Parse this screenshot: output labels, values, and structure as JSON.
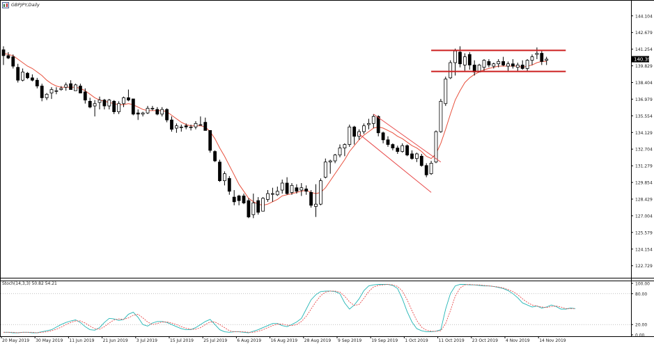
{
  "header": {
    "symbol_timeframe": "GBPJPY,Daily"
  },
  "chart_data": [
    {
      "type": "candlestick",
      "title": "GBPJPY,Daily",
      "y_ticks": [
        "144.104",
        "142.679",
        "141.254",
        "139.829",
        "138.404",
        "136.979",
        "135.554",
        "134.129",
        "132.704",
        "131.279",
        "129.854",
        "128.429",
        "127.004",
        "125.579",
        "124.154",
        "122.729"
      ],
      "x_ticks": [
        "20 May 2019",
        "30 May 2019",
        "11 Jun 2019",
        "21 Jun 2019",
        "3 Jul 2019",
        "15 Jul 2019",
        "25 Jul 2019",
        "6 Aug 2019",
        "16 Aug 2019",
        "28 Aug 2019",
        "9 Sep 2019",
        "19 Sep 2019",
        "1 Oct 2019",
        "11 Oct 2019",
        "23 Oct 2019",
        "4 Nov 2019",
        "14 Nov 2019"
      ],
      "ylim": [
        121.7,
        145.4
      ],
      "current_price": "140.397",
      "candles": [
        [
          141.2,
          141.5,
          139.9,
          140.7
        ],
        [
          140.7,
          141.0,
          140.4,
          140.5
        ],
        [
          140.6,
          140.8,
          139.6,
          139.8
        ],
        [
          139.7,
          140.0,
          138.4,
          138.6
        ],
        [
          138.6,
          139.6,
          138.5,
          139.3
        ],
        [
          139.2,
          139.3,
          138.7,
          138.8
        ],
        [
          138.8,
          139.1,
          138.5,
          138.6
        ],
        [
          138.6,
          138.8,
          137.9,
          138.1
        ],
        [
          138.1,
          138.3,
          136.8,
          137.1
        ],
        [
          137.1,
          137.5,
          136.9,
          137.4
        ],
        [
          137.5,
          138.0,
          137.0,
          137.8
        ],
        [
          137.7,
          138.0,
          137.4,
          137.7
        ],
        [
          137.8,
          138.1,
          137.7,
          137.9
        ],
        [
          138.0,
          138.4,
          137.7,
          138.2
        ],
        [
          138.3,
          138.6,
          137.8,
          137.8
        ],
        [
          137.7,
          138.3,
          137.7,
          138.2
        ],
        [
          138.1,
          138.3,
          137.5,
          137.5
        ],
        [
          137.6,
          137.9,
          136.6,
          136.9
        ],
        [
          136.8,
          137.1,
          136.2,
          136.3
        ],
        [
          136.4,
          136.9,
          135.5,
          136.6
        ],
        [
          136.7,
          137.2,
          136.1,
          136.9
        ],
        [
          136.9,
          137.0,
          136.1,
          136.4
        ],
        [
          136.4,
          137.0,
          136.1,
          136.9
        ],
        [
          136.8,
          136.9,
          135.7,
          135.9
        ],
        [
          135.9,
          136.8,
          135.7,
          136.6
        ],
        [
          136.6,
          137.2,
          136.3,
          137.1
        ],
        [
          137.1,
          137.8,
          136.8,
          136.9
        ],
        [
          137.0,
          137.0,
          135.6,
          135.7
        ],
        [
          135.8,
          136.1,
          135.2,
          135.7
        ],
        [
          135.7,
          135.9,
          135.5,
          135.8
        ],
        [
          135.8,
          136.4,
          135.7,
          136.2
        ],
        [
          136.2,
          136.4,
          136.0,
          136.2
        ],
        [
          136.1,
          136.3,
          135.6,
          135.7
        ],
        [
          135.7,
          136.3,
          135.5,
          136.1
        ],
        [
          136.1,
          136.2,
          135.0,
          135.2
        ],
        [
          135.2,
          135.5,
          134.2,
          134.4
        ],
        [
          134.5,
          134.9,
          134.1,
          134.7
        ],
        [
          134.6,
          134.8,
          134.2,
          134.6
        ],
        [
          134.7,
          134.9,
          134.4,
          134.6
        ],
        [
          134.6,
          134.8,
          134.3,
          134.6
        ],
        [
          134.6,
          135.1,
          134.4,
          134.9
        ],
        [
          134.8,
          135.5,
          134.8,
          134.8
        ],
        [
          135.0,
          135.4,
          134.3,
          134.3
        ],
        [
          134.3,
          134.3,
          132.4,
          132.6
        ],
        [
          132.5,
          132.6,
          131.6,
          131.7
        ],
        [
          131.6,
          131.8,
          129.9,
          130.0
        ],
        [
          130.0,
          130.8,
          129.6,
          130.6
        ],
        [
          130.2,
          130.4,
          128.8,
          129.1
        ],
        [
          128.6,
          129.2,
          127.9,
          128.2
        ],
        [
          128.7,
          128.8,
          127.9,
          128.3
        ],
        [
          128.7,
          128.9,
          128.0,
          128.1
        ],
        [
          128.3,
          128.5,
          126.8,
          126.9
        ],
        [
          127.1,
          128.9,
          126.8,
          128.1
        ],
        [
          128.3,
          128.6,
          127.1,
          127.3
        ],
        [
          127.4,
          128.6,
          127.4,
          128.5
        ],
        [
          128.4,
          129.2,
          128.2,
          128.9
        ],
        [
          128.9,
          129.4,
          128.2,
          128.9
        ],
        [
          128.8,
          129.5,
          128.7,
          129.1
        ],
        [
          129.2,
          130.1,
          128.9,
          129.8
        ],
        [
          129.8,
          130.3,
          128.8,
          128.9
        ],
        [
          129.0,
          129.8,
          128.8,
          129.6
        ],
        [
          129.4,
          129.7,
          128.9,
          129.1
        ],
        [
          129.2,
          129.8,
          128.7,
          129.4
        ],
        [
          129.3,
          129.6,
          128.8,
          129.1
        ],
        [
          129.0,
          129.2,
          127.7,
          127.9
        ],
        [
          127.8,
          129.7,
          126.9,
          128.0
        ],
        [
          128.0,
          130.2,
          127.9,
          130.0
        ],
        [
          130.3,
          131.9,
          130.2,
          131.6
        ],
        [
          131.6,
          131.8,
          130.6,
          131.7
        ],
        [
          131.7,
          132.3,
          131.5,
          132.2
        ],
        [
          132.2,
          133.1,
          132.0,
          132.8
        ],
        [
          132.8,
          133.2,
          132.1,
          133.1
        ],
        [
          133.1,
          134.8,
          132.9,
          134.6
        ],
        [
          134.6,
          134.7,
          133.1,
          133.8
        ],
        [
          133.8,
          134.4,
          133.5,
          134.2
        ],
        [
          134.2,
          134.9,
          134.0,
          134.7
        ],
        [
          134.8,
          135.3,
          134.4,
          134.9
        ],
        [
          134.9,
          135.7,
          134.5,
          135.5
        ],
        [
          135.5,
          135.6,
          133.8,
          134.1
        ],
        [
          134.1,
          134.2,
          133.2,
          133.5
        ],
        [
          133.5,
          133.8,
          132.9,
          133.1
        ],
        [
          133.1,
          133.2,
          132.6,
          132.8
        ],
        [
          132.8,
          133.0,
          132.3,
          132.5
        ],
        [
          132.5,
          133.2,
          132.4,
          133.0
        ],
        [
          133.0,
          133.1,
          132.1,
          132.2
        ],
        [
          132.3,
          132.6,
          131.8,
          131.9
        ],
        [
          131.9,
          132.4,
          131.6,
          132.3
        ],
        [
          132.1,
          132.3,
          131.2,
          131.3
        ],
        [
          131.3,
          131.5,
          130.3,
          130.5
        ],
        [
          130.6,
          131.7,
          130.5,
          131.5
        ],
        [
          131.6,
          134.3,
          131.5,
          134.2
        ],
        [
          134.2,
          137.0,
          134.1,
          136.8
        ],
        [
          136.6,
          138.9,
          136.4,
          138.7
        ],
        [
          138.8,
          140.3,
          138.7,
          140.1
        ],
        [
          140.1,
          141.3,
          139.0,
          141.1
        ],
        [
          141.0,
          141.5,
          139.7,
          140.0
        ],
        [
          139.9,
          140.9,
          139.4,
          140.6
        ],
        [
          140.8,
          141.0,
          139.5,
          139.9
        ],
        [
          139.9,
          140.3,
          139.0,
          139.3
        ],
        [
          139.3,
          140.0,
          139.3,
          139.9
        ],
        [
          139.7,
          140.4,
          139.4,
          140.3
        ],
        [
          140.2,
          140.4,
          139.7,
          139.9
        ],
        [
          139.8,
          140.1,
          139.6,
          140.0
        ],
        [
          140.0,
          140.4,
          139.7,
          140.2
        ],
        [
          140.2,
          140.6,
          139.8,
          139.9
        ],
        [
          139.8,
          140.2,
          139.4,
          140.0
        ],
        [
          140.0,
          140.4,
          139.6,
          139.8
        ],
        [
          139.7,
          140.1,
          139.3,
          139.9
        ],
        [
          139.9,
          140.3,
          139.5,
          139.6
        ],
        [
          139.6,
          140.4,
          139.4,
          140.3
        ],
        [
          140.3,
          140.8,
          139.9,
          140.6
        ],
        [
          140.8,
          141.4,
          140.4,
          140.9
        ],
        [
          140.9,
          141.1,
          139.9,
          140.2
        ],
        [
          140.3,
          140.6,
          139.9,
          140.4
        ]
      ],
      "ma_line": [
        140.9,
        140.8,
        140.7,
        140.4,
        140.1,
        139.8,
        139.6,
        139.3,
        139.0,
        138.6,
        138.3,
        138.1,
        138.0,
        138.0,
        138.0,
        138.0,
        137.9,
        137.7,
        137.4,
        137.1,
        136.9,
        136.8,
        136.7,
        136.6,
        136.5,
        136.5,
        136.6,
        136.5,
        136.3,
        136.1,
        136.0,
        136.0,
        136.0,
        136.0,
        135.9,
        135.6,
        135.3,
        135.0,
        134.8,
        134.7,
        134.7,
        134.7,
        134.6,
        134.2,
        133.6,
        132.8,
        132.1,
        131.3,
        130.5,
        129.7,
        129.1,
        128.5,
        128.2,
        128.0,
        127.9,
        128.0,
        128.2,
        128.4,
        128.7,
        128.8,
        128.9,
        129.0,
        129.1,
        129.2,
        129.0,
        128.9,
        129.0,
        129.4,
        130.0,
        130.6,
        131.2,
        131.8,
        132.5,
        133.0,
        133.5,
        133.9,
        134.2,
        134.5,
        134.6,
        134.5,
        134.3,
        134.1,
        133.8,
        133.6,
        133.3,
        133.0,
        132.8,
        132.5,
        132.1,
        131.9,
        132.3,
        133.2,
        134.4,
        135.7,
        136.9,
        137.7,
        138.4,
        138.8,
        139.1,
        139.3,
        139.5,
        139.6,
        139.7,
        139.8,
        139.8,
        139.8,
        139.8,
        139.8,
        139.7,
        139.8,
        139.9,
        140.1,
        140.2,
        140.2
      ],
      "ma_color": "#e8503c",
      "bull_color": "#ffffff",
      "bear_color": "#000000",
      "resistance": 141.15,
      "support": 139.35,
      "sr_color": "#cc1f1f",
      "channel_color": "#e84a4a",
      "channel": {
        "upper": [
          [
            77,
            135.7
          ],
          [
            91,
            131.6
          ]
        ],
        "lower": [
          [
            74,
            134.0
          ],
          [
            89,
            129.0
          ]
        ]
      }
    },
    {
      "type": "line",
      "title": "Stoch(14,3,3) 50.82 54.21",
      "ylim": [
        0,
        100
      ],
      "y_ticks": [
        "100.00",
        "80.00",
        "20.00",
        "0.00"
      ],
      "levels": [
        80,
        20
      ],
      "series": [
        {
          "name": "Stoch(14,3,3) 50.82",
          "color": "#22b5b5",
          "values": [
            5,
            5,
            4,
            4,
            5,
            5,
            4,
            4,
            6,
            8,
            10,
            15,
            20,
            24,
            27,
            29,
            24,
            16,
            10,
            9,
            14,
            24,
            32,
            31,
            28,
            30,
            40,
            44,
            34,
            20,
            17,
            23,
            26,
            26,
            24,
            20,
            16,
            12,
            10,
            10,
            14,
            20,
            26,
            30,
            20,
            10,
            6,
            5,
            6,
            6,
            5,
            4,
            7,
            10,
            14,
            18,
            22,
            22,
            18,
            16,
            20,
            25,
            32,
            50,
            68,
            78,
            84,
            85,
            85,
            84,
            80,
            62,
            50,
            58,
            70,
            86,
            95,
            97,
            98,
            98,
            98,
            96,
            90,
            70,
            45,
            25,
            12,
            8,
            6,
            6,
            7,
            10,
            50,
            80,
            95,
            98,
            98,
            97,
            97,
            96,
            95,
            95,
            94,
            92,
            90,
            86,
            80,
            72,
            62,
            58,
            54,
            56,
            52,
            54,
            58,
            55,
            50,
            50,
            52,
            51
          ]
        },
        {
          "name": "54.21",
          "color": "#e84a4a",
          "values": [
            5,
            5,
            5,
            4,
            5,
            5,
            5,
            4,
            5,
            6,
            8,
            11,
            15,
            20,
            24,
            27,
            27,
            23,
            17,
            12,
            11,
            16,
            23,
            29,
            31,
            30,
            33,
            38,
            40,
            33,
            25,
            20,
            22,
            25,
            25,
            23,
            20,
            16,
            13,
            11,
            11,
            14,
            20,
            25,
            25,
            20,
            14,
            8,
            6,
            6,
            6,
            5,
            5,
            7,
            10,
            14,
            18,
            21,
            21,
            19,
            18,
            20,
            26,
            36,
            50,
            64,
            76,
            83,
            85,
            85,
            83,
            75,
            64,
            57,
            59,
            71,
            84,
            93,
            96,
            97,
            98,
            97,
            94,
            85,
            68,
            47,
            28,
            15,
            9,
            7,
            7,
            8,
            22,
            47,
            75,
            91,
            97,
            98,
            97,
            97,
            96,
            95,
            94,
            93,
            91,
            88,
            84,
            78,
            70,
            63,
            58,
            56,
            54,
            53,
            55,
            56,
            54,
            51,
            51,
            51
          ]
        }
      ]
    }
  ]
}
